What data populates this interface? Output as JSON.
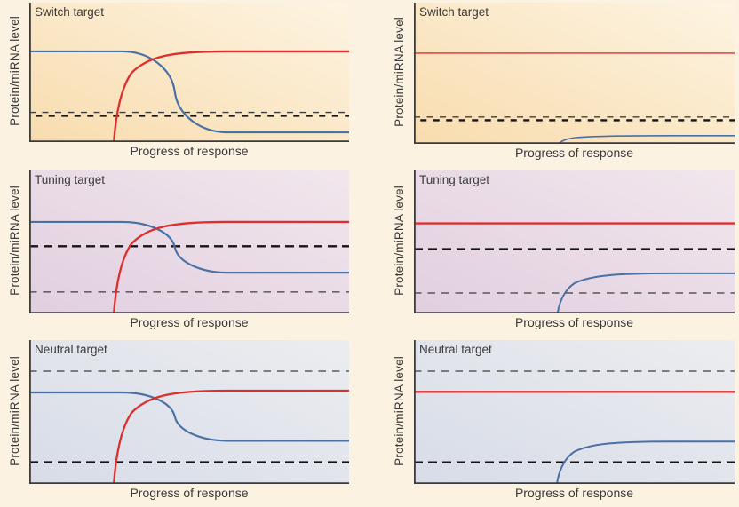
{
  "figure": {
    "background": "#fbf2e1",
    "description_visible_text_only": true
  },
  "colors": {
    "blue": "#4a70a4",
    "red": "#dc2f2f",
    "dash_thick": "#151515",
    "dash_thin": "#3d3d3d",
    "axis": "#3b3b3b",
    "text": "#3a3a3a"
  },
  "chart_data": [
    {
      "type": "line",
      "title": "Switch target",
      "x_label": "Progress of response",
      "y_label": "Protein/miRNA level",
      "bg": [
        "#f8dcae",
        "#fdf4e2"
      ],
      "axis_ticks": "none",
      "thresholds": [
        {
          "style": "thin",
          "y": 0.787,
          "dash": "7 7.5",
          "phase": 0
        },
        {
          "style": "thick",
          "y": 0.812,
          "dash": "7 7.5",
          "phase": 7.25
        }
      ],
      "series": [
        {
          "color": "blue",
          "shape": "sigmoid_down",
          "y_start": 0.35,
          "y_end": 0.93,
          "x_center": 0.455,
          "width": 2.2
        },
        {
          "color": "red",
          "shape": "rise",
          "x_start": 0.264,
          "y_end": 0.35,
          "width": 2.3
        }
      ]
    },
    {
      "type": "line",
      "title": "Switch target",
      "x_label": "Progress of response",
      "y_label": "Protein/miRNA level",
      "bg": [
        "#f8dcae",
        "#fdf4e2"
      ],
      "axis_ticks": "none",
      "thresholds": [
        {
          "style": "thin",
          "y": 0.81,
          "dash": "7 7.5",
          "phase": 0
        },
        {
          "style": "thick",
          "y": 0.833,
          "dash": "7 7.5",
          "phase": 7.25
        }
      ],
      "series": [
        {
          "color": "red",
          "shape": "constant",
          "y": 0.358,
          "width": 1.3
        },
        {
          "color": "blue",
          "shape": "rise",
          "x_start": 0.449,
          "y_end": 0.942,
          "width": 1.6
        }
      ]
    },
    {
      "type": "line",
      "title": "Tuning target",
      "x_label": "Progress of response",
      "y_label": "Protein/miRNA level",
      "bg": [
        "#e1cfe0",
        "#f2e7ed"
      ],
      "axis_ticks": "none",
      "thresholds": [
        {
          "style": "thick",
          "y": 0.53
        },
        {
          "style": "thin",
          "y": 0.85
        }
      ],
      "series": [
        {
          "color": "blue",
          "shape": "sigmoid_down",
          "y_start": 0.36,
          "y_end": 0.715,
          "x_center": 0.455,
          "width": 2.2
        },
        {
          "color": "red",
          "shape": "rise",
          "x_start": 0.264,
          "y_end": 0.36,
          "width": 2.3
        }
      ]
    },
    {
      "type": "line",
      "title": "Tuning target",
      "x_label": "Progress of response",
      "y_label": "Protein/miRNA level",
      "bg": [
        "#e1cfe0",
        "#f2e7ed"
      ],
      "axis_ticks": "none",
      "thresholds": [
        {
          "style": "thick",
          "y": 0.55
        },
        {
          "style": "thin",
          "y": 0.857
        }
      ],
      "series": [
        {
          "color": "red",
          "shape": "constant",
          "y": 0.37,
          "width": 2.3
        },
        {
          "color": "blue",
          "shape": "rise",
          "x_start": 0.447,
          "y_end": 0.72,
          "width": 2.0
        }
      ]
    },
    {
      "type": "line",
      "title": "Neutral target",
      "x_label": "Progress of response",
      "y_label": "Protein/miRNA level",
      "bg": [
        "#d7dce8",
        "#ecedf0"
      ],
      "axis_ticks": "none",
      "thresholds": [
        {
          "style": "thin",
          "y": 0.216
        },
        {
          "style": "thick",
          "y": 0.849
        }
      ],
      "series": [
        {
          "color": "blue",
          "shape": "sigmoid_down",
          "y_start": 0.364,
          "y_end": 0.7,
          "x_center": 0.455,
          "width": 2.2
        },
        {
          "color": "red",
          "shape": "rise",
          "x_start": 0.264,
          "y_end": 0.352,
          "width": 2.3
        }
      ]
    },
    {
      "type": "line",
      "title": "Neutral target",
      "x_label": "Progress of response",
      "y_label": "Protein/miRNA level",
      "bg": [
        "#d7dce8",
        "#ecedf0"
      ],
      "axis_ticks": "none",
      "thresholds": [
        {
          "style": "thin",
          "y": 0.216
        },
        {
          "style": "thick",
          "y": 0.85
        }
      ],
      "series": [
        {
          "color": "red",
          "shape": "constant",
          "y": 0.36,
          "width": 2.3
        },
        {
          "color": "blue",
          "shape": "rise",
          "x_start": 0.445,
          "y_end": 0.705,
          "width": 2.0
        }
      ]
    }
  ]
}
